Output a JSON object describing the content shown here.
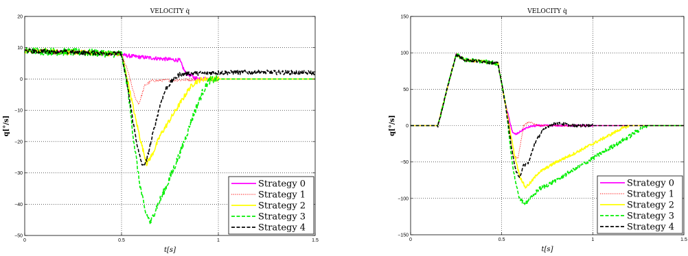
{
  "chart_data": [
    {
      "type": "line",
      "title": "VELOCITY q̇",
      "xlabel": "t[s]",
      "ylabel": "q[°/s]",
      "xlim": [
        0,
        1.5
      ],
      "ylim": [
        -50,
        20
      ],
      "xticks": [
        0,
        0.5,
        1,
        1.5
      ],
      "yticks": [
        -50,
        -40,
        -30,
        -20,
        -10,
        0,
        10,
        20
      ],
      "xtick_labels": [
        "0",
        "0.5",
        "1",
        "1.5"
      ],
      "ytick_labels": [
        "−50",
        "−40",
        "−30",
        "−20",
        "−10",
        "0",
        "10",
        "20"
      ],
      "grid": true,
      "legend_position": "bottom-right",
      "series": [
        {
          "name": "Strategy 0",
          "color": "#ff00ff",
          "dash": "solid",
          "noise": 0.6,
          "points": [
            [
              0,
              9
            ],
            [
              0.2,
              8.5
            ],
            [
              0.5,
              8
            ],
            [
              0.52,
              7.5
            ],
            [
              0.6,
              7
            ],
            [
              0.7,
              6.5
            ],
            [
              0.8,
              6
            ],
            [
              0.83,
              2
            ],
            [
              0.88,
              0.3
            ],
            [
              0.95,
              0
            ],
            [
              1.5,
              0
            ]
          ]
        },
        {
          "name": "Strategy 1",
          "color": "#ff0000",
          "dash": "dotted",
          "noise": 0.4,
          "points": [
            [
              0,
              9
            ],
            [
              0.3,
              8.5
            ],
            [
              0.5,
              8
            ],
            [
              0.53,
              3
            ],
            [
              0.57,
              -6
            ],
            [
              0.59,
              -8
            ],
            [
              0.62,
              -2
            ],
            [
              0.66,
              -0.5
            ],
            [
              0.8,
              -0.3
            ],
            [
              1,
              0
            ],
            [
              1.5,
              0
            ]
          ]
        },
        {
          "name": "Strategy 2",
          "color": "#ffff00",
          "dash": "solid",
          "noise": 0.8,
          "points": [
            [
              0,
              9
            ],
            [
              0.3,
              8.5
            ],
            [
              0.5,
              8
            ],
            [
              0.53,
              0
            ],
            [
              0.57,
              -12
            ],
            [
              0.6,
              -20
            ],
            [
              0.63,
              -27
            ],
            [
              0.66,
              -24
            ],
            [
              0.7,
              -18
            ],
            [
              0.75,
              -13
            ],
            [
              0.8,
              -8
            ],
            [
              0.85,
              -3
            ],
            [
              0.88,
              -1
            ],
            [
              0.92,
              0
            ],
            [
              1.5,
              0
            ]
          ]
        },
        {
          "name": "Strategy 3",
          "color": "#00ee00",
          "dash": "dashed",
          "noise": 1.2,
          "points": [
            [
              0,
              9
            ],
            [
              0.3,
              8.5
            ],
            [
              0.5,
              8
            ],
            [
              0.53,
              -2
            ],
            [
              0.56,
              -18
            ],
            [
              0.59,
              -32
            ],
            [
              0.62,
              -42
            ],
            [
              0.65,
              -46
            ],
            [
              0.68,
              -41
            ],
            [
              0.72,
              -36
            ],
            [
              0.76,
              -30
            ],
            [
              0.8,
              -24
            ],
            [
              0.84,
              -17
            ],
            [
              0.88,
              -10
            ],
            [
              0.92,
              -4
            ],
            [
              0.95,
              -0.5
            ],
            [
              1.0,
              0
            ],
            [
              1.5,
              0
            ]
          ]
        },
        {
          "name": "Strategy 4",
          "color": "#000000",
          "dash": "dashed",
          "noise": 0.7,
          "points": [
            [
              0,
              9
            ],
            [
              0.3,
              8.5
            ],
            [
              0.5,
              8
            ],
            [
              0.53,
              -2
            ],
            [
              0.56,
              -14
            ],
            [
              0.59,
              -24
            ],
            [
              0.61,
              -28
            ],
            [
              0.63,
              -26
            ],
            [
              0.66,
              -18
            ],
            [
              0.7,
              -8
            ],
            [
              0.73,
              -3
            ],
            [
              0.77,
              0
            ],
            [
              0.8,
              1.5
            ],
            [
              0.85,
              1.8
            ],
            [
              1.0,
              2
            ],
            [
              1.2,
              2.2
            ],
            [
              1.5,
              2
            ]
          ]
        }
      ]
    },
    {
      "type": "line",
      "title": "VELOCITY q̇",
      "xlabel": "t[s]",
      "ylabel": "q[°/s]",
      "xlim": [
        0,
        1.5
      ],
      "ylim": [
        -150,
        150
      ],
      "xticks": [
        0,
        0.5,
        1,
        1.5
      ],
      "yticks": [
        -150,
        -100,
        -50,
        0,
        50,
        100,
        150
      ],
      "xtick_labels": [
        "0",
        "0.5",
        "1",
        "1.5"
      ],
      "ytick_labels": [
        "−150",
        "−100",
        "−50",
        "0",
        "50",
        "100",
        "150"
      ],
      "grid": true,
      "legend_position": "bottom-right",
      "series": [
        {
          "name": "Strategy 0",
          "color": "#ff00ff",
          "dash": "solid",
          "noise": 1.2,
          "points": [
            [
              0,
              0
            ],
            [
              0.15,
              0
            ],
            [
              0.2,
              50
            ],
            [
              0.25,
              98
            ],
            [
              0.3,
              90
            ],
            [
              0.4,
              88
            ],
            [
              0.48,
              85
            ],
            [
              0.52,
              30
            ],
            [
              0.56,
              -10
            ],
            [
              0.58,
              -12
            ],
            [
              0.62,
              -5
            ],
            [
              0.66,
              -1
            ],
            [
              0.7,
              0
            ],
            [
              1.5,
              0
            ]
          ]
        },
        {
          "name": "Strategy 1",
          "color": "#ff0000",
          "dash": "dotted",
          "noise": 1.2,
          "points": [
            [
              0,
              0
            ],
            [
              0.15,
              0
            ],
            [
              0.2,
              50
            ],
            [
              0.25,
              98
            ],
            [
              0.3,
              90
            ],
            [
              0.4,
              88
            ],
            [
              0.48,
              85
            ],
            [
              0.52,
              30
            ],
            [
              0.56,
              -40
            ],
            [
              0.59,
              -45
            ],
            [
              0.62,
              0
            ],
            [
              0.65,
              5
            ],
            [
              0.7,
              0
            ],
            [
              1.5,
              0
            ]
          ]
        },
        {
          "name": "Strategy 2",
          "color": "#ffff00",
          "dash": "solid",
          "noise": 2,
          "points": [
            [
              0,
              0
            ],
            [
              0.15,
              0
            ],
            [
              0.2,
              50
            ],
            [
              0.25,
              98
            ],
            [
              0.3,
              90
            ],
            [
              0.4,
              88
            ],
            [
              0.48,
              85
            ],
            [
              0.52,
              30
            ],
            [
              0.57,
              -40
            ],
            [
              0.6,
              -70
            ],
            [
              0.63,
              -85
            ],
            [
              0.66,
              -78
            ],
            [
              0.7,
              -65
            ],
            [
              0.8,
              -50
            ],
            [
              0.9,
              -38
            ],
            [
              1.0,
              -25
            ],
            [
              1.1,
              -12
            ],
            [
              1.15,
              -5
            ],
            [
              1.2,
              0
            ],
            [
              1.5,
              0
            ]
          ]
        },
        {
          "name": "Strategy 3",
          "color": "#00ee00",
          "dash": "dashed",
          "noise": 3,
          "points": [
            [
              0,
              0
            ],
            [
              0.15,
              0
            ],
            [
              0.2,
              50
            ],
            [
              0.25,
              98
            ],
            [
              0.3,
              90
            ],
            [
              0.4,
              88
            ],
            [
              0.48,
              85
            ],
            [
              0.52,
              30
            ],
            [
              0.56,
              -55
            ],
            [
              0.59,
              -95
            ],
            [
              0.62,
              -108
            ],
            [
              0.66,
              -100
            ],
            [
              0.7,
              -88
            ],
            [
              0.8,
              -75
            ],
            [
              0.9,
              -60
            ],
            [
              1.0,
              -45
            ],
            [
              1.1,
              -30
            ],
            [
              1.2,
              -15
            ],
            [
              1.27,
              -3
            ],
            [
              1.3,
              0
            ],
            [
              1.5,
              0
            ]
          ]
        },
        {
          "name": "Strategy 4",
          "color": "#000000",
          "dash": "dashed",
          "noise": 2,
          "points": [
            [
              0,
              0
            ],
            [
              0.15,
              0
            ],
            [
              0.2,
              50
            ],
            [
              0.25,
              98
            ],
            [
              0.3,
              90
            ],
            [
              0.4,
              88
            ],
            [
              0.48,
              85
            ],
            [
              0.52,
              30
            ],
            [
              0.56,
              -40
            ],
            [
              0.58,
              -65
            ],
            [
              0.6,
              -70
            ],
            [
              0.62,
              -55
            ],
            [
              0.65,
              -50
            ],
            [
              0.68,
              -25
            ],
            [
              0.72,
              -8
            ],
            [
              0.76,
              0
            ],
            [
              0.8,
              3
            ],
            [
              0.85,
              2
            ],
            [
              0.9,
              0
            ],
            [
              1.5,
              0
            ]
          ]
        }
      ]
    }
  ]
}
